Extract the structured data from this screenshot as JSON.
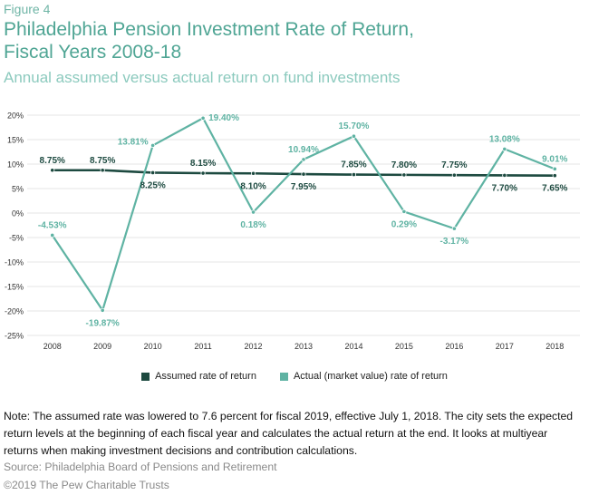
{
  "figure_label": "Figure 4",
  "title_line1": "Philadelphia Pension Investment Rate of Return,",
  "title_line2": "Fiscal Years 2008-18",
  "subtitle": "Annual assumed versus actual return on fund investments",
  "note": "Note: The assumed rate was lowered to 7.6 percent for fiscal 2019, effective July 1, 2018. The city sets the expected return levels at the beginning of each fiscal year and calculates the actual return at the end. It looks at multiyear returns when making investment decisions and contribution calculations.",
  "source": "Source: Philadelphia Board of Pensions and Retirement",
  "copyright": "©2019 The Pew Charitable Trusts",
  "colors": {
    "assumed": "#1d4a40",
    "actual": "#5fb3a3",
    "grid": "#e4e4e4",
    "axis_text": "#333333"
  },
  "chart_data": {
    "type": "line",
    "title": "Philadelphia Pension Investment Rate of Return, Fiscal Years 2008-18",
    "categories": [
      "2008",
      "2009",
      "2010",
      "2011",
      "2012",
      "2013",
      "2014",
      "2015",
      "2016",
      "2017",
      "2018"
    ],
    "y_ticks": [
      "20%",
      "15%",
      "10%",
      "5%",
      "0%",
      "-5%",
      "-10%",
      "-15%",
      "-20%",
      "-25%"
    ],
    "ylim": [
      -25,
      20
    ],
    "y_unit": "%",
    "grid": true,
    "legend_position": "bottom",
    "series": [
      {
        "name": "Assumed rate of return",
        "color": "#1d4a40",
        "values": [
          8.75,
          8.75,
          8.25,
          8.15,
          8.1,
          7.95,
          7.85,
          7.8,
          7.75,
          7.7,
          7.65
        ],
        "labels": [
          "8.75%",
          "8.75%",
          "8.25%",
          "8.15%",
          "8.10%",
          "7.95%",
          "7.85%",
          "7.80%",
          "7.75%",
          "7.70%",
          "7.65%"
        ],
        "label_pos": [
          "above",
          "above",
          "below",
          "above",
          "below",
          "below",
          "above",
          "above",
          "above",
          "below",
          "below"
        ]
      },
      {
        "name": "Actual (market value) rate of return",
        "color": "#5fb3a3",
        "values": [
          -4.53,
          -19.87,
          13.81,
          19.4,
          0.18,
          10.94,
          15.7,
          0.29,
          -3.17,
          13.08,
          9.01
        ],
        "labels": [
          "-4.53%",
          "-19.87%",
          "13.81%",
          "19.40%",
          "0.18%",
          "10.94%",
          "15.70%",
          "0.29%",
          "-3.17%",
          "13.08%",
          "9.01%"
        ],
        "label_pos": [
          "above",
          "below",
          "left",
          "right",
          "below",
          "above",
          "above",
          "below",
          "below",
          "above",
          "above"
        ]
      }
    ]
  }
}
